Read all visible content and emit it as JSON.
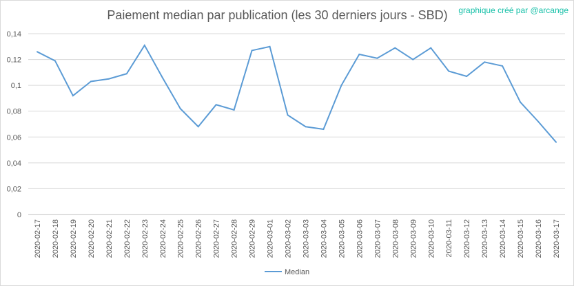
{
  "chart_data": {
    "type": "line",
    "title": "Paiement median par publication (les 30 derniers jours - SBD)",
    "credit": "graphique créé par @arcange",
    "xlabel": "",
    "ylabel": "",
    "ylim": [
      0,
      0.14
    ],
    "yticks": [
      "0",
      "0,02",
      "0,04",
      "0,06",
      "0,08",
      "0,1",
      "0,12",
      "0,14"
    ],
    "grid": true,
    "legend_position": "bottom",
    "categories": [
      "2020-02-17",
      "2020-02-18",
      "2020-02-19",
      "2020-02-20",
      "2020-02-21",
      "2020-02-22",
      "2020-02-23",
      "2020-02-24",
      "2020-02-25",
      "2020-02-26",
      "2020-02-27",
      "2020-02-28",
      "2020-02-29",
      "2020-03-01",
      "2020-03-02",
      "2020-03-03",
      "2020-03-04",
      "2020-03-05",
      "2020-03-06",
      "2020-03-07",
      "2020-03-08",
      "2020-03-09",
      "2020-03-10",
      "2020-03-11",
      "2020-03-12",
      "2020-03-13",
      "2020-03-14",
      "2020-03-15",
      "2020-03-16",
      "2020-03-17"
    ],
    "series": [
      {
        "name": "Median",
        "color": "#5b9bd5",
        "values": [
          0.126,
          0.119,
          0.092,
          0.103,
          0.105,
          0.109,
          0.131,
          0.106,
          0.082,
          0.068,
          0.085,
          0.081,
          0.127,
          0.13,
          0.077,
          0.068,
          0.066,
          0.1,
          0.124,
          0.121,
          0.129,
          0.12,
          0.129,
          0.111,
          0.107,
          0.118,
          0.115,
          0.087,
          0.072,
          0.056
        ]
      }
    ]
  },
  "colors": {
    "grid": "#d9d9d9",
    "axis": "#bfbfbf",
    "credit": "#16c0a8"
  }
}
